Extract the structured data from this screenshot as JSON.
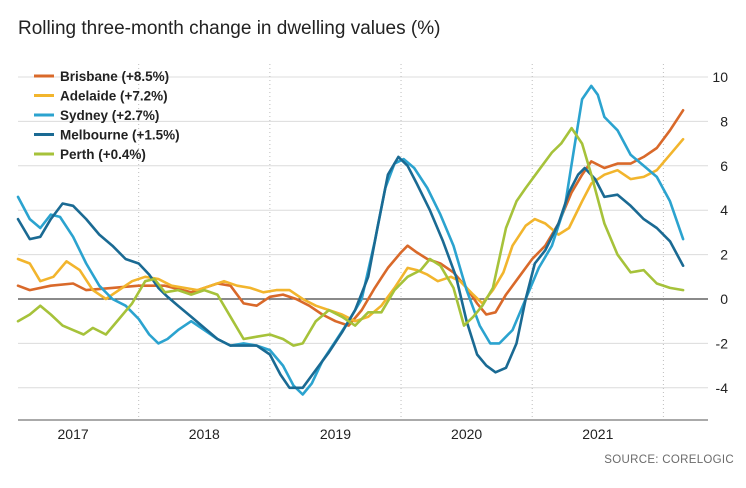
{
  "chart_data": {
    "type": "line",
    "title": "Rolling three-month change in dwelling values (%)",
    "source": "SOURCE: CORELOGIC",
    "ylim": [
      -6,
      10
    ],
    "yticks": [
      10,
      8,
      6,
      4,
      2,
      0,
      -2,
      -4
    ],
    "x_year_labels": [
      "2017",
      "2018",
      "2019",
      "2020",
      "2021"
    ],
    "xlim": [
      2016.58,
      2021.84
    ],
    "grid": true,
    "legend_position": "top-left",
    "series": [
      {
        "name": "Brisbane (+8.5%)",
        "color": "#d9692a",
        "points": [
          [
            2016.58,
            0.6
          ],
          [
            2016.67,
            0.4
          ],
          [
            2016.83,
            0.6
          ],
          [
            2017.0,
            0.7
          ],
          [
            2017.1,
            0.4
          ],
          [
            2017.3,
            0.5
          ],
          [
            2017.5,
            0.6
          ],
          [
            2017.7,
            0.6
          ],
          [
            2017.9,
            0.3
          ],
          [
            2018.1,
            0.7
          ],
          [
            2018.2,
            0.6
          ],
          [
            2018.3,
            -0.2
          ],
          [
            2018.4,
            -0.3
          ],
          [
            2018.5,
            0.1
          ],
          [
            2018.6,
            0.2
          ],
          [
            2018.7,
            0.0
          ],
          [
            2018.8,
            -0.3
          ],
          [
            2018.9,
            -0.7
          ],
          [
            2019.0,
            -1.0
          ],
          [
            2019.1,
            -1.2
          ],
          [
            2019.2,
            -0.5
          ],
          [
            2019.3,
            0.5
          ],
          [
            2019.4,
            1.4
          ],
          [
            2019.5,
            2.1
          ],
          [
            2019.55,
            2.4
          ],
          [
            2019.62,
            2.1
          ],
          [
            2019.7,
            1.8
          ],
          [
            2019.8,
            1.6
          ],
          [
            2019.9,
            1.2
          ],
          [
            2020.0,
            0.5
          ],
          [
            2020.08,
            -0.2
          ],
          [
            2020.15,
            -0.7
          ],
          [
            2020.22,
            -0.6
          ],
          [
            2020.3,
            0.2
          ],
          [
            2020.4,
            1.0
          ],
          [
            2020.5,
            1.8
          ],
          [
            2020.6,
            2.4
          ],
          [
            2020.7,
            3.4
          ],
          [
            2020.8,
            4.8
          ],
          [
            2020.88,
            5.6
          ],
          [
            2020.95,
            6.2
          ],
          [
            2021.05,
            5.9
          ],
          [
            2021.15,
            6.1
          ],
          [
            2021.25,
            6.1
          ],
          [
            2021.35,
            6.4
          ],
          [
            2021.45,
            6.8
          ],
          [
            2021.55,
            7.6
          ],
          [
            2021.65,
            8.5
          ]
        ]
      },
      {
        "name": "Adelaide (+7.2%)",
        "color": "#f2b52d",
        "points": [
          [
            2016.58,
            1.8
          ],
          [
            2016.67,
            1.6
          ],
          [
            2016.75,
            0.8
          ],
          [
            2016.85,
            1.0
          ],
          [
            2016.95,
            1.7
          ],
          [
            2017.05,
            1.3
          ],
          [
            2017.15,
            0.4
          ],
          [
            2017.25,
            0.0
          ],
          [
            2017.35,
            0.4
          ],
          [
            2017.45,
            0.8
          ],
          [
            2017.55,
            1.0
          ],
          [
            2017.65,
            0.9
          ],
          [
            2017.75,
            0.6
          ],
          [
            2017.85,
            0.5
          ],
          [
            2017.95,
            0.4
          ],
          [
            2018.05,
            0.6
          ],
          [
            2018.15,
            0.8
          ],
          [
            2018.25,
            0.6
          ],
          [
            2018.35,
            0.5
          ],
          [
            2018.45,
            0.3
          ],
          [
            2018.55,
            0.4
          ],
          [
            2018.65,
            0.4
          ],
          [
            2018.75,
            0.0
          ],
          [
            2018.85,
            -0.3
          ],
          [
            2018.95,
            -0.5
          ],
          [
            2019.05,
            -0.7
          ],
          [
            2019.15,
            -1.0
          ],
          [
            2019.25,
            -0.8
          ],
          [
            2019.35,
            -0.3
          ],
          [
            2019.45,
            0.5
          ],
          [
            2019.55,
            1.4
          ],
          [
            2019.62,
            1.3
          ],
          [
            2019.7,
            1.1
          ],
          [
            2019.78,
            0.8
          ],
          [
            2019.88,
            1.0
          ],
          [
            2019.95,
            0.8
          ],
          [
            2020.05,
            0.2
          ],
          [
            2020.12,
            -0.2
          ],
          [
            2020.2,
            0.4
          ],
          [
            2020.28,
            1.2
          ],
          [
            2020.35,
            2.4
          ],
          [
            2020.45,
            3.3
          ],
          [
            2020.52,
            3.6
          ],
          [
            2020.6,
            3.4
          ],
          [
            2020.7,
            2.9
          ],
          [
            2020.78,
            3.2
          ],
          [
            2020.88,
            4.4
          ],
          [
            2020.95,
            5.2
          ],
          [
            2021.05,
            5.6
          ],
          [
            2021.15,
            5.8
          ],
          [
            2021.25,
            5.4
          ],
          [
            2021.35,
            5.5
          ],
          [
            2021.45,
            5.8
          ],
          [
            2021.55,
            6.5
          ],
          [
            2021.65,
            7.2
          ]
        ]
      },
      {
        "name": "Sydney (+2.7%)",
        "color": "#2ba3cf",
        "points": [
          [
            2016.58,
            4.6
          ],
          [
            2016.67,
            3.6
          ],
          [
            2016.75,
            3.2
          ],
          [
            2016.83,
            3.8
          ],
          [
            2016.9,
            3.7
          ],
          [
            2017.0,
            2.8
          ],
          [
            2017.1,
            1.6
          ],
          [
            2017.2,
            0.6
          ],
          [
            2017.3,
            0.0
          ],
          [
            2017.4,
            -0.3
          ],
          [
            2017.5,
            -0.9
          ],
          [
            2017.58,
            -1.6
          ],
          [
            2017.65,
            -2.0
          ],
          [
            2017.72,
            -1.8
          ],
          [
            2017.8,
            -1.4
          ],
          [
            2017.9,
            -1.0
          ],
          [
            2018.0,
            -1.4
          ],
          [
            2018.1,
            -1.8
          ],
          [
            2018.2,
            -2.1
          ],
          [
            2018.3,
            -2.0
          ],
          [
            2018.4,
            -2.1
          ],
          [
            2018.5,
            -2.3
          ],
          [
            2018.6,
            -3.0
          ],
          [
            2018.68,
            -3.9
          ],
          [
            2018.75,
            -4.3
          ],
          [
            2018.82,
            -3.8
          ],
          [
            2018.9,
            -2.8
          ],
          [
            2019.0,
            -1.9
          ],
          [
            2019.1,
            -1.0
          ],
          [
            2019.2,
            0.0
          ],
          [
            2019.3,
            2.6
          ],
          [
            2019.38,
            5.0
          ],
          [
            2019.45,
            6.1
          ],
          [
            2019.52,
            6.3
          ],
          [
            2019.6,
            5.9
          ],
          [
            2019.7,
            5.0
          ],
          [
            2019.8,
            3.8
          ],
          [
            2019.9,
            2.4
          ],
          [
            2020.0,
            0.4
          ],
          [
            2020.1,
            -1.2
          ],
          [
            2020.18,
            -2.0
          ],
          [
            2020.25,
            -2.0
          ],
          [
            2020.35,
            -1.4
          ],
          [
            2020.45,
            0.0
          ],
          [
            2020.55,
            1.4
          ],
          [
            2020.65,
            2.4
          ],
          [
            2020.75,
            4.2
          ],
          [
            2020.82,
            6.8
          ],
          [
            2020.88,
            9.0
          ],
          [
            2020.95,
            9.6
          ],
          [
            2021.0,
            9.2
          ],
          [
            2021.05,
            8.2
          ],
          [
            2021.15,
            7.6
          ],
          [
            2021.25,
            6.5
          ],
          [
            2021.35,
            6.0
          ],
          [
            2021.45,
            5.5
          ],
          [
            2021.55,
            4.4
          ],
          [
            2021.65,
            2.7
          ]
        ]
      },
      {
        "name": "Melbourne (+1.5%)",
        "color": "#1a6a93",
        "points": [
          [
            2016.58,
            3.6
          ],
          [
            2016.67,
            2.7
          ],
          [
            2016.75,
            2.8
          ],
          [
            2016.83,
            3.6
          ],
          [
            2016.92,
            4.3
          ],
          [
            2017.0,
            4.2
          ],
          [
            2017.1,
            3.6
          ],
          [
            2017.2,
            2.9
          ],
          [
            2017.3,
            2.4
          ],
          [
            2017.4,
            1.8
          ],
          [
            2017.5,
            1.6
          ],
          [
            2017.58,
            1.1
          ],
          [
            2017.65,
            0.5
          ],
          [
            2017.72,
            0.1
          ],
          [
            2017.8,
            -0.3
          ],
          [
            2017.9,
            -0.8
          ],
          [
            2018.0,
            -1.3
          ],
          [
            2018.1,
            -1.8
          ],
          [
            2018.2,
            -2.1
          ],
          [
            2018.3,
            -2.1
          ],
          [
            2018.4,
            -2.1
          ],
          [
            2018.5,
            -2.5
          ],
          [
            2018.58,
            -3.4
          ],
          [
            2018.65,
            -4.0
          ],
          [
            2018.75,
            -4.0
          ],
          [
            2018.85,
            -3.2
          ],
          [
            2018.95,
            -2.4
          ],
          [
            2019.05,
            -1.5
          ],
          [
            2019.15,
            -0.5
          ],
          [
            2019.25,
            1.0
          ],
          [
            2019.32,
            3.2
          ],
          [
            2019.4,
            5.6
          ],
          [
            2019.48,
            6.4
          ],
          [
            2019.55,
            6.0
          ],
          [
            2019.62,
            5.2
          ],
          [
            2019.72,
            4.0
          ],
          [
            2019.82,
            2.6
          ],
          [
            2019.92,
            1.0
          ],
          [
            2020.0,
            -1.0
          ],
          [
            2020.08,
            -2.5
          ],
          [
            2020.15,
            -3.0
          ],
          [
            2020.22,
            -3.3
          ],
          [
            2020.3,
            -3.1
          ],
          [
            2020.38,
            -2.0
          ],
          [
            2020.45,
            0.0
          ],
          [
            2020.52,
            1.6
          ],
          [
            2020.6,
            2.2
          ],
          [
            2020.7,
            3.4
          ],
          [
            2020.78,
            4.8
          ],
          [
            2020.85,
            5.6
          ],
          [
            2020.9,
            5.9
          ],
          [
            2020.98,
            5.4
          ],
          [
            2021.05,
            4.6
          ],
          [
            2021.15,
            4.7
          ],
          [
            2021.25,
            4.2
          ],
          [
            2021.35,
            3.6
          ],
          [
            2021.45,
            3.2
          ],
          [
            2021.55,
            2.6
          ],
          [
            2021.65,
            1.5
          ]
        ]
      },
      {
        "name": "Perth (+0.4%)",
        "color": "#a6c23a",
        "points": [
          [
            2016.58,
            -1.0
          ],
          [
            2016.67,
            -0.7
          ],
          [
            2016.75,
            -0.3
          ],
          [
            2016.83,
            -0.7
          ],
          [
            2016.92,
            -1.2
          ],
          [
            2017.0,
            -1.4
          ],
          [
            2017.08,
            -1.6
          ],
          [
            2017.15,
            -1.3
          ],
          [
            2017.25,
            -1.6
          ],
          [
            2017.35,
            -0.9
          ],
          [
            2017.45,
            -0.2
          ],
          [
            2017.55,
            0.8
          ],
          [
            2017.62,
            0.9
          ],
          [
            2017.7,
            0.3
          ],
          [
            2017.8,
            0.4
          ],
          [
            2017.9,
            0.2
          ],
          [
            2018.0,
            0.4
          ],
          [
            2018.1,
            0.2
          ],
          [
            2018.2,
            -0.8
          ],
          [
            2018.3,
            -1.8
          ],
          [
            2018.4,
            -1.7
          ],
          [
            2018.5,
            -1.6
          ],
          [
            2018.6,
            -1.8
          ],
          [
            2018.68,
            -2.1
          ],
          [
            2018.75,
            -2.0
          ],
          [
            2018.85,
            -1.0
          ],
          [
            2018.95,
            -0.5
          ],
          [
            2019.05,
            -0.8
          ],
          [
            2019.15,
            -1.2
          ],
          [
            2019.25,
            -0.6
          ],
          [
            2019.35,
            -0.6
          ],
          [
            2019.45,
            0.4
          ],
          [
            2019.55,
            1.0
          ],
          [
            2019.65,
            1.3
          ],
          [
            2019.72,
            1.8
          ],
          [
            2019.8,
            1.5
          ],
          [
            2019.9,
            0.5
          ],
          [
            2019.98,
            -1.2
          ],
          [
            2020.05,
            -0.8
          ],
          [
            2020.12,
            -0.3
          ],
          [
            2020.2,
            0.5
          ],
          [
            2020.3,
            3.2
          ],
          [
            2020.38,
            4.4
          ],
          [
            2020.45,
            5.0
          ],
          [
            2020.55,
            5.8
          ],
          [
            2020.65,
            6.6
          ],
          [
            2020.72,
            7.0
          ],
          [
            2020.8,
            7.7
          ],
          [
            2020.88,
            7.0
          ],
          [
            2020.95,
            5.6
          ],
          [
            2021.05,
            3.4
          ],
          [
            2021.15,
            2.0
          ],
          [
            2021.25,
            1.2
          ],
          [
            2021.35,
            1.3
          ],
          [
            2021.45,
            0.7
          ],
          [
            2021.55,
            0.5
          ],
          [
            2021.65,
            0.4
          ]
        ]
      }
    ]
  }
}
